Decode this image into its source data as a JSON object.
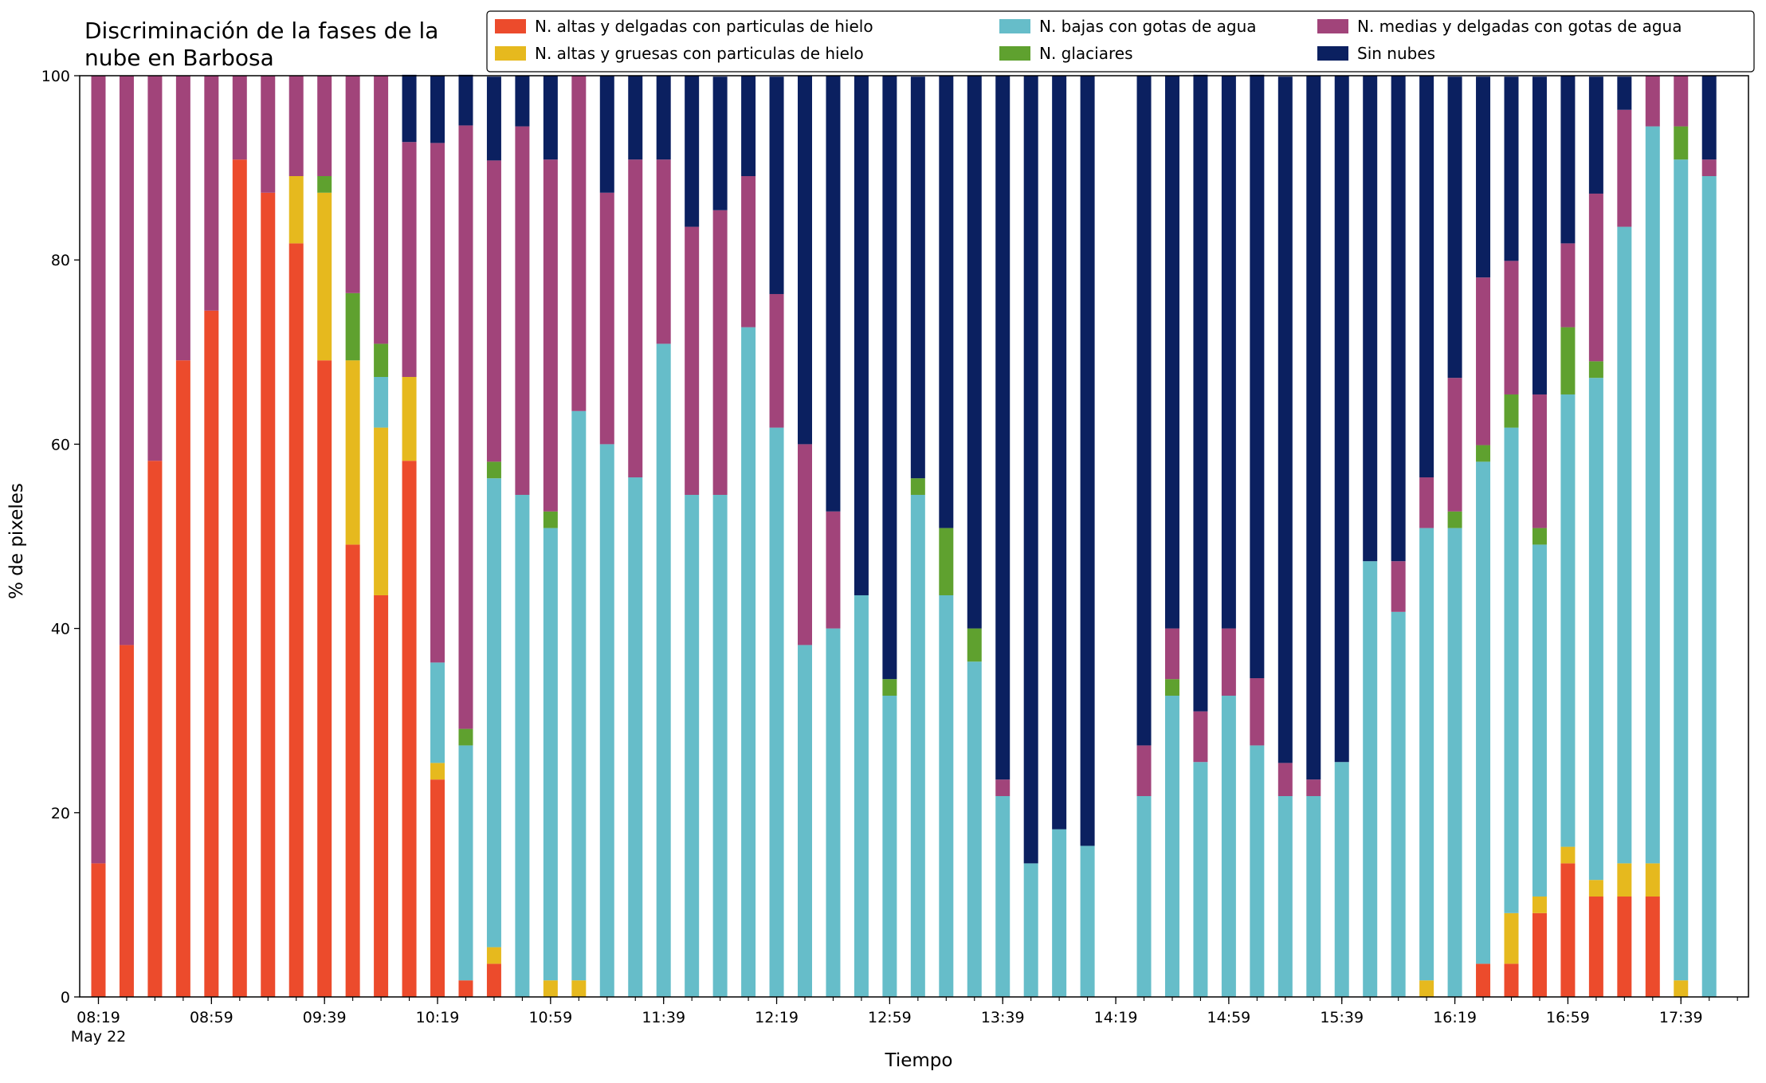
{
  "chart_data": {
    "type": "bar",
    "stacked": true,
    "title": "Discriminación de la fases de la\nnube en Barbosa",
    "xlabel": "Tiempo",
    "ylabel": "% de pixeles",
    "ylim": [
      0,
      100
    ],
    "yticks": [
      0,
      20,
      40,
      60,
      80,
      100
    ],
    "grid": false,
    "legend_position": "top-right",
    "x_start": "08:19",
    "x_step_minutes": 10,
    "x_tick_labels": [
      {
        "slot": 0,
        "label": "08:19",
        "sublabel": "May 22"
      },
      {
        "slot": 4,
        "label": "08:59"
      },
      {
        "slot": 8,
        "label": "09:39"
      },
      {
        "slot": 12,
        "label": "10:19"
      },
      {
        "slot": 16,
        "label": "10:59"
      },
      {
        "slot": 20,
        "label": "11:39"
      },
      {
        "slot": 24,
        "label": "12:19"
      },
      {
        "slot": 28,
        "label": "12:59"
      },
      {
        "slot": 32,
        "label": "13:39"
      },
      {
        "slot": 36,
        "label": "14:19"
      },
      {
        "slot": 40,
        "label": "14:59"
      },
      {
        "slot": 44,
        "label": "15:39"
      },
      {
        "slot": 48,
        "label": "16:19"
      },
      {
        "slot": 52,
        "label": "16:59"
      },
      {
        "slot": 56,
        "label": "17:39"
      }
    ],
    "series": [
      {
        "name": "N. altas y delgadas con particulas de hielo",
        "color": "#ec4b2c"
      },
      {
        "name": "N. altas y gruesas con particulas de hielo",
        "color": "#e6b91e"
      },
      {
        "name": "N. bajas con gotas de agua",
        "color": "#66bdc9"
      },
      {
        "name": "N. glaciares",
        "color": "#5fa12f"
      },
      {
        "name": "N. medias y delgadas con gotas de agua",
        "color": "#a1447a"
      },
      {
        "name": "Sin nubes",
        "color": "#0b2060"
      }
    ],
    "bars": [
      {
        "time": "08:19",
        "values": [
          14.5,
          0,
          0,
          0,
          85.5,
          0
        ]
      },
      {
        "time": "08:29",
        "values": [
          38.2,
          0,
          0,
          0,
          61.8,
          0
        ]
      },
      {
        "time": "08:39",
        "values": [
          58.2,
          0,
          0,
          0,
          41.8,
          0
        ]
      },
      {
        "time": "08:49",
        "values": [
          69.1,
          0,
          0,
          0,
          30.9,
          0
        ]
      },
      {
        "time": "08:59",
        "values": [
          74.5,
          0,
          0,
          0,
          25.5,
          0
        ]
      },
      {
        "time": "09:09",
        "values": [
          90.9,
          0,
          0,
          0,
          9.1,
          0
        ]
      },
      {
        "time": "09:19",
        "values": [
          87.3,
          0,
          0,
          0,
          12.7,
          0
        ]
      },
      {
        "time": "09:29",
        "values": [
          81.8,
          7.3,
          0,
          0,
          10.9,
          0
        ]
      },
      {
        "time": "09:39",
        "values": [
          69.1,
          18.2,
          0,
          1.8,
          10.9,
          0
        ]
      },
      {
        "time": "09:49",
        "values": [
          49.1,
          20.0,
          0,
          7.3,
          23.6,
          0
        ]
      },
      {
        "time": "09:59",
        "values": [
          43.6,
          18.2,
          5.5,
          3.6,
          29.1,
          0
        ]
      },
      {
        "time": "10:09",
        "values": [
          58.2,
          9.1,
          0,
          0,
          25.5,
          7.3
        ]
      },
      {
        "time": "10:19",
        "values": [
          23.6,
          1.8,
          10.9,
          0,
          56.4,
          7.3
        ]
      },
      {
        "time": "10:29",
        "values": [
          1.8,
          0,
          25.5,
          1.8,
          65.5,
          5.5
        ]
      },
      {
        "time": "10:39",
        "values": [
          3.6,
          1.8,
          50.9,
          1.8,
          32.7,
          9.1
        ]
      },
      {
        "time": "10:49",
        "values": [
          0,
          0,
          54.5,
          0,
          40.0,
          5.5
        ]
      },
      {
        "time": "10:59",
        "values": [
          0,
          1.8,
          49.1,
          1.8,
          38.2,
          9.1
        ]
      },
      {
        "time": "11:09",
        "values": [
          0,
          1.8,
          61.8,
          0,
          36.4,
          0
        ]
      },
      {
        "time": "11:19",
        "values": [
          0,
          0,
          60.0,
          0,
          27.3,
          12.7
        ]
      },
      {
        "time": "11:29",
        "values": [
          0,
          0,
          56.4,
          0,
          34.5,
          9.1
        ]
      },
      {
        "time": "11:39",
        "values": [
          0,
          0,
          70.9,
          0,
          20.0,
          9.1
        ]
      },
      {
        "time": "11:49",
        "values": [
          0,
          0,
          54.5,
          0,
          29.1,
          16.4
        ]
      },
      {
        "time": "11:59",
        "values": [
          0,
          0,
          54.5,
          0,
          30.9,
          14.5
        ]
      },
      {
        "time": "12:09",
        "values": [
          0,
          0,
          72.7,
          0,
          16.4,
          10.9
        ]
      },
      {
        "time": "12:19",
        "values": [
          0,
          0,
          61.8,
          0,
          14.5,
          23.6
        ]
      },
      {
        "time": "12:29",
        "values": [
          0,
          0,
          38.2,
          0,
          21.8,
          40.0
        ]
      },
      {
        "time": "12:39",
        "values": [
          0,
          0,
          40.0,
          0,
          12.7,
          47.3
        ]
      },
      {
        "time": "12:49",
        "values": [
          0,
          0,
          43.6,
          0,
          0,
          56.4
        ]
      },
      {
        "time": "12:59",
        "values": [
          0,
          0,
          32.7,
          1.8,
          0,
          65.5
        ]
      },
      {
        "time": "13:09",
        "values": [
          0,
          0,
          54.5,
          1.8,
          0,
          43.6
        ]
      },
      {
        "time": "13:19",
        "values": [
          0,
          0,
          43.6,
          7.3,
          0,
          49.1
        ]
      },
      {
        "time": "13:29",
        "values": [
          0,
          0,
          36.4,
          3.6,
          0,
          60.0
        ]
      },
      {
        "time": "13:39",
        "values": [
          0,
          0,
          21.8,
          0,
          1.8,
          76.4
        ]
      },
      {
        "time": "13:49",
        "values": [
          0,
          0,
          14.5,
          0,
          0,
          85.5
        ]
      },
      {
        "time": "13:59",
        "values": [
          0,
          0,
          18.2,
          0,
          0,
          81.8
        ]
      },
      {
        "time": "14:09",
        "values": [
          0,
          0,
          16.4,
          0,
          0,
          83.6
        ]
      },
      {
        "time": "14:29",
        "values": [
          0,
          0,
          21.8,
          0,
          5.5,
          72.7
        ]
      },
      {
        "time": "14:39",
        "values": [
          0,
          0,
          32.7,
          1.8,
          5.5,
          60.0
        ]
      },
      {
        "time": "14:49",
        "values": [
          0,
          0,
          25.5,
          0,
          5.5,
          69.1
        ]
      },
      {
        "time": "14:59",
        "values": [
          0,
          0,
          32.7,
          0,
          7.3,
          60.0
        ]
      },
      {
        "time": "15:09",
        "values": [
          0,
          0,
          27.3,
          0,
          7.3,
          65.5
        ]
      },
      {
        "time": "15:19",
        "values": [
          0,
          0,
          21.8,
          0,
          3.6,
          74.5
        ]
      },
      {
        "time": "15:29",
        "values": [
          0,
          0,
          21.8,
          0,
          1.8,
          76.4
        ]
      },
      {
        "time": "15:39",
        "values": [
          0,
          0,
          25.5,
          0,
          0,
          74.5
        ]
      },
      {
        "time": "15:49",
        "values": [
          0,
          0,
          47.3,
          0,
          0,
          52.7
        ]
      },
      {
        "time": "15:59",
        "values": [
          0,
          0,
          41.8,
          0,
          5.5,
          52.7
        ]
      },
      {
        "time": "16:09",
        "values": [
          0,
          1.8,
          49.1,
          0,
          5.5,
          43.6
        ]
      },
      {
        "time": "16:19",
        "values": [
          0,
          0,
          50.9,
          1.8,
          14.5,
          32.7
        ]
      },
      {
        "time": "16:29",
        "values": [
          3.6,
          0,
          54.5,
          1.8,
          18.2,
          21.8
        ]
      },
      {
        "time": "16:39",
        "values": [
          3.6,
          5.5,
          52.7,
          3.6,
          14.5,
          20.0
        ]
      },
      {
        "time": "16:49",
        "values": [
          9.1,
          1.8,
          38.2,
          1.8,
          14.5,
          34.5
        ]
      },
      {
        "time": "16:59",
        "values": [
          14.5,
          1.8,
          49.1,
          7.3,
          9.1,
          18.2
        ]
      },
      {
        "time": "17:09",
        "values": [
          10.9,
          1.8,
          54.5,
          1.8,
          18.2,
          12.7
        ]
      },
      {
        "time": "17:19",
        "values": [
          10.9,
          3.6,
          69.1,
          0,
          12.7,
          3.6
        ]
      },
      {
        "time": "17:29",
        "values": [
          10.9,
          3.6,
          80.0,
          0,
          5.5,
          0
        ]
      },
      {
        "time": "17:39",
        "values": [
          0,
          1.8,
          89.1,
          3.6,
          5.5,
          0
        ]
      },
      {
        "time": "17:49",
        "values": [
          0,
          0,
          89.1,
          0,
          1.8,
          9.1
        ]
      }
    ]
  }
}
